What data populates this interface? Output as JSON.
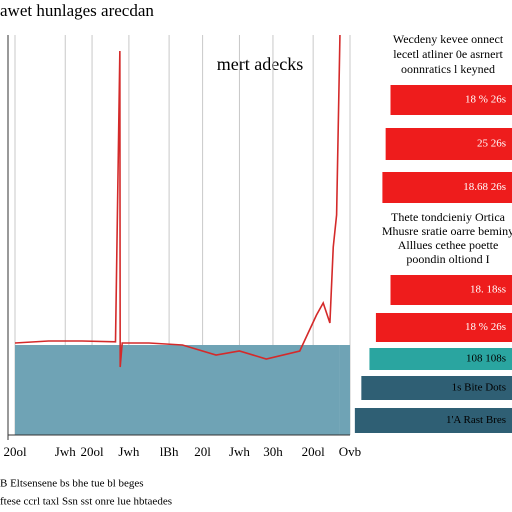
{
  "chart_data": [
    {
      "type": "line",
      "title": "awet hunlages arecdan",
      "annotation": "mert adecks",
      "x": [
        0,
        1,
        2,
        3,
        3.13,
        3.14,
        3.2,
        4,
        5,
        6,
        6.7,
        7.5,
        8.5,
        9,
        9.2,
        9.4,
        9.5,
        9.6,
        9.7
      ],
      "xlim": [
        0,
        10
      ],
      "ylim": [
        0,
        100
      ],
      "xticks": [
        {
          "value": 0,
          "label": "20ol"
        },
        {
          "value": 1.5,
          "label": "Jwh"
        },
        {
          "value": 2.3,
          "label": "20ol"
        },
        {
          "value": 3.4,
          "label": "Jwh"
        },
        {
          "value": 4.6,
          "label": "lBh"
        },
        {
          "value": 5.6,
          "label": "20l"
        },
        {
          "value": 6.7,
          "label": "Jwh"
        },
        {
          "value": 7.7,
          "label": "30h"
        },
        {
          "value": 8.9,
          "label": "20ol"
        },
        {
          "value": 10,
          "label": "Ovb"
        }
      ],
      "grid": true,
      "series": [
        {
          "type": "area",
          "color": "#6fa3b5",
          "values": [
            22.5,
            22.5,
            22.5,
            22.5,
            22.5,
            22.5,
            22.5,
            22.5,
            22.5,
            22.5,
            22.5,
            22.5,
            22.5,
            22.5,
            22.5,
            22.5,
            22.5,
            22.5,
            22.5
          ]
        },
        {
          "type": "line",
          "color": "#d42a2a",
          "values": [
            23,
            23.5,
            23.5,
            23.3,
            96,
            17,
            23,
            23,
            22.5,
            20,
            21,
            19,
            21,
            30,
            33,
            28,
            47,
            55,
            100
          ]
        }
      ]
    },
    {
      "type": "hbar",
      "xlim": [
        0,
        100
      ],
      "values": [
        75,
        78,
        80,
        75,
        84,
        88,
        93,
        97
      ],
      "labels": [
        "18 % 26s",
        "25 26s",
        "18.68 26s",
        "18. 18ss",
        "18 % 26s",
        "108 108s",
        "1s Bite Dots",
        "1'A Rast Bres"
      ],
      "colors": [
        "#ee1c1c",
        "#ee1c1c",
        "#ee1c1c",
        "#ee1c1c",
        "#ee1c1c",
        "#2aa5a0",
        "#2f5f74",
        "#2f5f74"
      ]
    }
  ],
  "notes": [
    [
      "Wecdeny kevee onnect",
      "lecetl atliner 0e asrnert",
      "oonnratics l keyned"
    ],
    [
      "Thete tondcieniy Ortica",
      "Mhusre sratie oarre beminy",
      "Alllues cethee poette",
      "poondin oltiond I"
    ]
  ],
  "footer": [
    "B Eltsensene bs bhe tue bl beges",
    "ftese ccrl taxl Ssn sst onre lue hbtaedes"
  ]
}
